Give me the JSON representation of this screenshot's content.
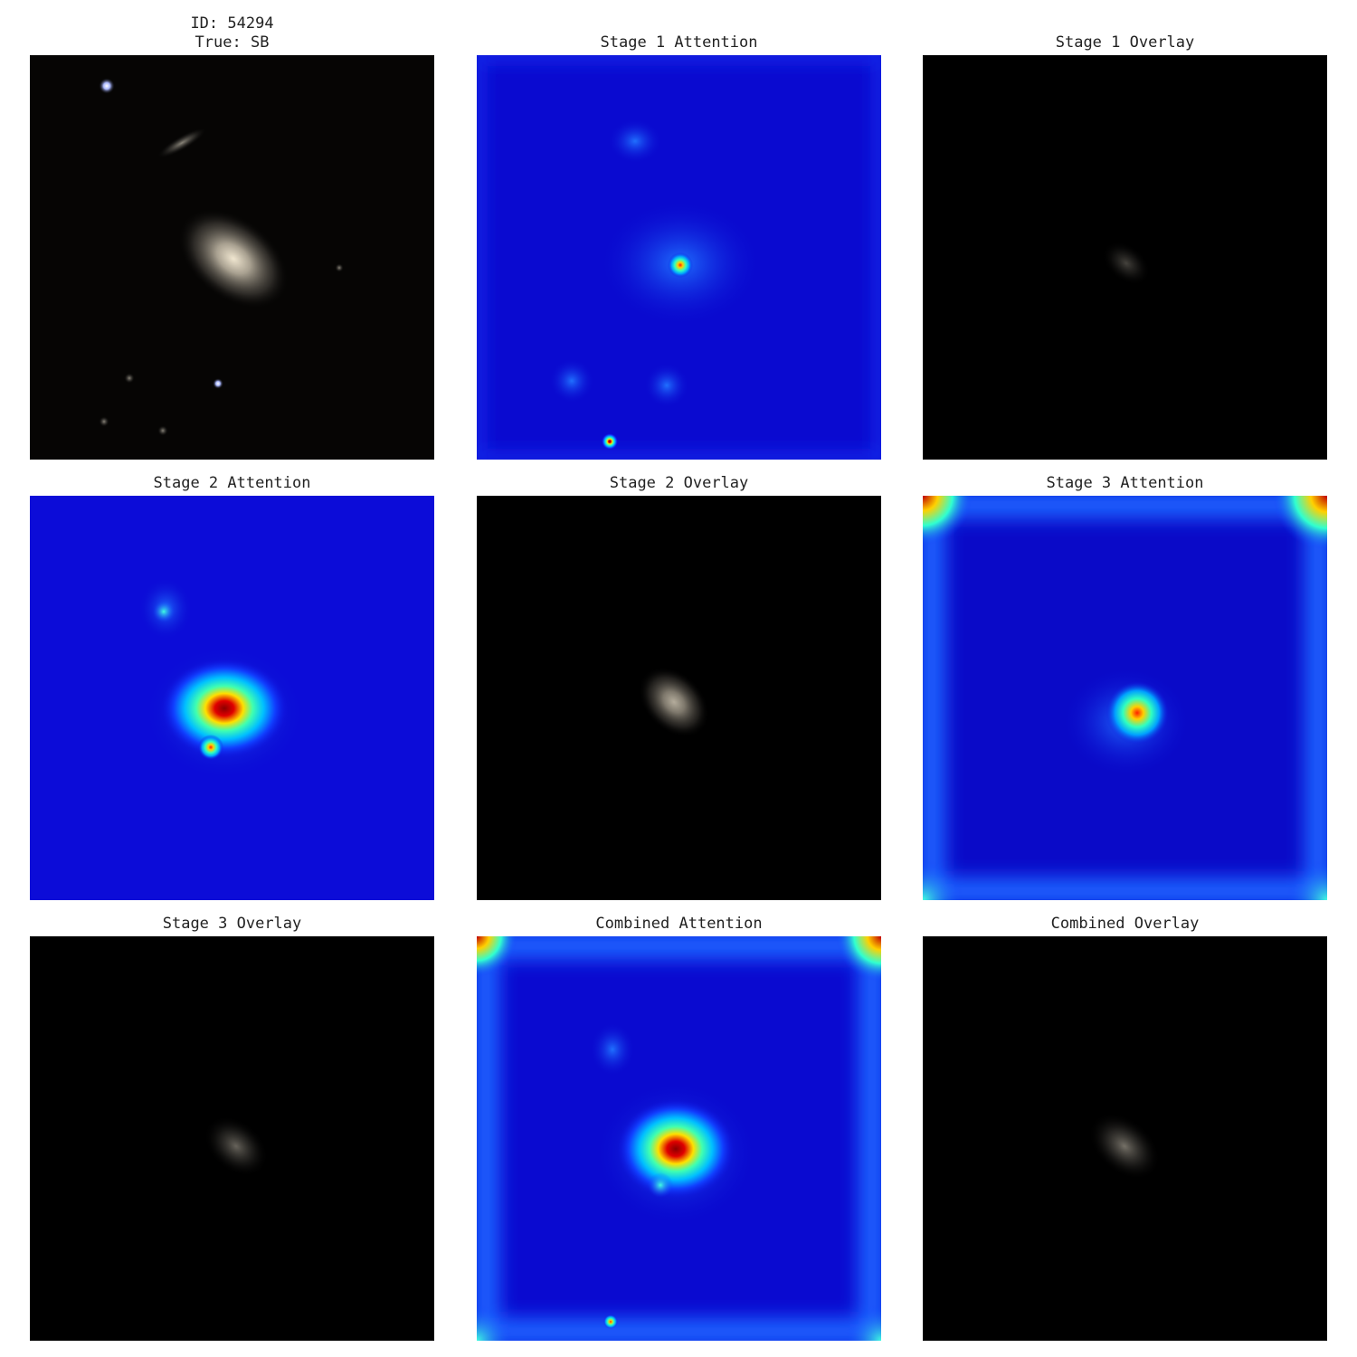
{
  "panels": [
    {
      "title": [
        "ID: 54294",
        "True: SB"
      ]
    },
    {
      "title": "Stage 1 Attention"
    },
    {
      "title": "Stage 1 Overlay"
    },
    {
      "title": "Stage 2 Attention"
    },
    {
      "title": "Stage 2 Overlay"
    },
    {
      "title": "Stage 3 Attention"
    },
    {
      "title": "Stage 3 Overlay"
    },
    {
      "title": "Combined Attention"
    },
    {
      "title": "Combined Overlay"
    }
  ]
}
